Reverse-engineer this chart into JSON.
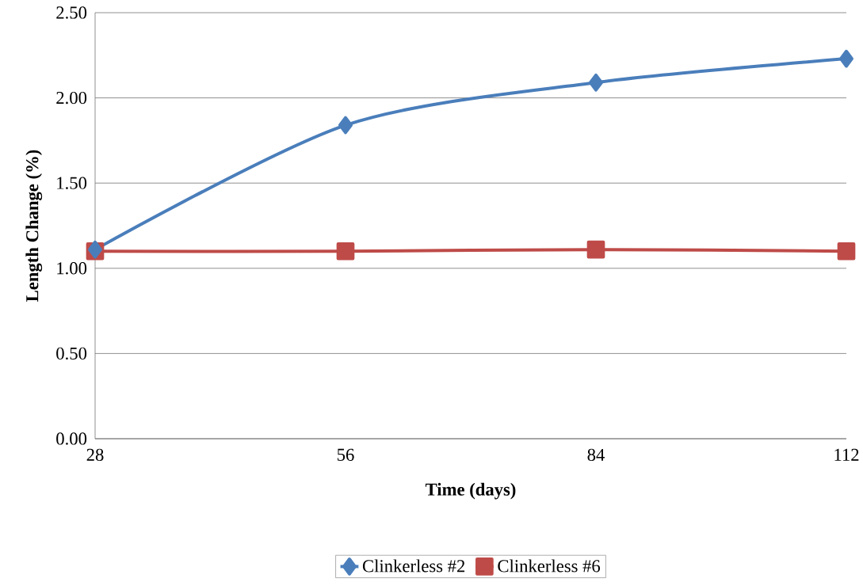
{
  "chart_data": {
    "type": "line",
    "xlabel": "Time (days)",
    "ylabel": "Length Change (%)",
    "x": [
      28,
      56,
      84,
      112
    ],
    "series": [
      {
        "name": "Clinkerless #2",
        "color": "#4a7ebb",
        "marker": "diamond",
        "values": [
          1.11,
          1.84,
          2.09,
          2.23
        ]
      },
      {
        "name": "Clinkerless #6",
        "color": "#be4b48",
        "marker": "square",
        "values": [
          1.1,
          1.1,
          1.11,
          1.1
        ]
      }
    ],
    "xlim": [
      28,
      112
    ],
    "xticks": [
      28,
      56,
      84,
      112
    ],
    "ylim": [
      0,
      2.5
    ],
    "yticks": [
      {
        "value": 0,
        "label": "0.00"
      },
      {
        "value": 0.5,
        "label": "0.50"
      },
      {
        "value": 1,
        "label": "1.00"
      },
      {
        "value": 1.5,
        "label": "1.50"
      },
      {
        "value": 2,
        "label": "2.00"
      },
      {
        "value": 2.5,
        "label": "2.50"
      }
    ],
    "grid": "y",
    "legend": "bottom",
    "line_style": "solid"
  }
}
